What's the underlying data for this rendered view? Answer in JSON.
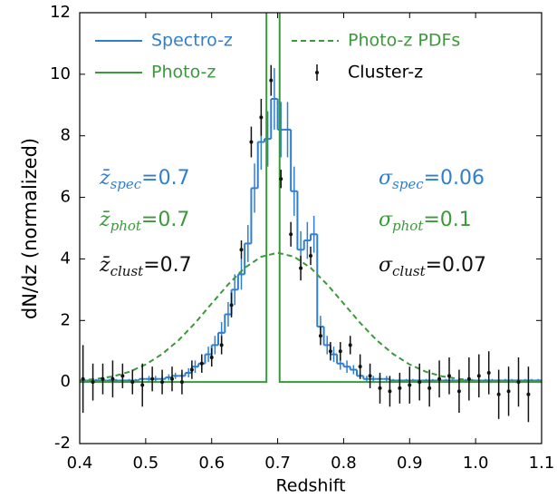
{
  "chart_data": {
    "type": "mixed",
    "xlabel": "Redshift",
    "ylabel": "dN/dz (normalized)",
    "xlim": [
      0.4,
      1.1
    ],
    "ylim": [
      -2,
      12
    ],
    "xticks": [
      0.4,
      0.5,
      0.6,
      0.7,
      0.8,
      0.9,
      {
        "value": 1,
        "label": "1.0"
      },
      1.1
    ],
    "yticks": [
      -2,
      0,
      2,
      4,
      6,
      8,
      10,
      12
    ],
    "series": [
      {
        "name": "Spectro-z",
        "type": "histogram",
        "color": "#2f7fd0",
        "bins": [
          0.4,
          0.41,
          0.42,
          0.43,
          0.44,
          0.45,
          0.46,
          0.47,
          0.48,
          0.49,
          0.5,
          0.51,
          0.52,
          0.53,
          0.54,
          0.55,
          0.56,
          0.57,
          0.58,
          0.59,
          0.6,
          0.61,
          0.62,
          0.63,
          0.64,
          0.65,
          0.66,
          0.67,
          0.68,
          0.69,
          0.7,
          0.71,
          0.72,
          0.73,
          0.74,
          0.75,
          0.76,
          0.77,
          0.78,
          0.79,
          0.8,
          0.81,
          0.82,
          0.83,
          0.84,
          0.85,
          0.86,
          0.87,
          0.88,
          0.89,
          0.9,
          0.91,
          0.92,
          0.93,
          0.94,
          0.95,
          0.96,
          0.97,
          0.98,
          0.99,
          1.0,
          1.01,
          1.02,
          1.03,
          1.04,
          1.05,
          1.06,
          1.07,
          1.08,
          1.09,
          1.1
        ],
        "values": [
          0.05,
          0.05,
          0.05,
          0.05,
          0.05,
          0.05,
          0.05,
          0.05,
          0.05,
          0.1,
          0.1,
          0.1,
          0.1,
          0.15,
          0.2,
          0.2,
          0.3,
          0.5,
          0.6,
          0.9,
          1.2,
          1.6,
          2.2,
          3.0,
          3.5,
          4.5,
          6.3,
          7.8,
          7.9,
          9.2,
          8.2,
          8.2,
          6.2,
          4.3,
          4.6,
          4.8,
          1.8,
          1.2,
          0.9,
          0.6,
          0.5,
          0.4,
          0.2,
          0.1,
          0.1,
          0.1,
          0.1,
          0.05,
          0.05,
          0.05,
          0.05,
          0.05,
          0.05,
          0.05,
          0.05,
          0.05,
          0.05,
          0.05,
          0.05,
          0.05,
          0.05,
          0.05,
          0.05,
          0.05,
          0.05,
          0.05,
          0.05,
          0.05,
          0.05,
          0.05
        ],
        "errors": [
          0.05,
          0.05,
          0.05,
          0.05,
          0.05,
          0.05,
          0.05,
          0.05,
          0.05,
          0.1,
          0.1,
          0.1,
          0.1,
          0.1,
          0.1,
          0.1,
          0.15,
          0.2,
          0.2,
          0.25,
          0.3,
          0.35,
          0.4,
          0.5,
          0.5,
          0.6,
          0.8,
          0.9,
          0.9,
          1.0,
          0.9,
          0.9,
          0.8,
          0.6,
          0.6,
          0.6,
          0.35,
          0.3,
          0.25,
          0.2,
          0.2,
          0.15,
          0.1,
          0.1,
          0.1,
          0.1,
          0.1,
          0.05,
          0.05,
          0.05,
          0.05,
          0.05,
          0.05,
          0.05,
          0.05,
          0.05,
          0.05,
          0.05,
          0.05,
          0.05,
          0.05,
          0.05,
          0.05,
          0.05,
          0.05,
          0.05,
          0.05,
          0.05,
          0.05,
          0.05
        ]
      },
      {
        "name": "Photo-z",
        "type": "line",
        "color": "#3a9a3a",
        "dash": false,
        "x": [
          0.4,
          0.683,
          0.683,
          0.703,
          0.703,
          1.1
        ],
        "values": [
          0,
          0,
          20,
          20,
          0,
          0
        ]
      },
      {
        "name": "Photo-z PDFs",
        "type": "line",
        "color": "#3a9a3a",
        "dash": true,
        "x": [
          0.4,
          0.425,
          0.45,
          0.475,
          0.5,
          0.525,
          0.55,
          0.575,
          0.6,
          0.625,
          0.65,
          0.675,
          0.7,
          0.725,
          0.75,
          0.775,
          0.8,
          0.825,
          0.85,
          0.875,
          0.9,
          0.925,
          0.95,
          0.975,
          1.0,
          1.025,
          1.05,
          1.075,
          1.1
        ],
        "values": [
          0.05,
          0.1,
          0.18,
          0.33,
          0.57,
          0.91,
          1.36,
          1.92,
          2.55,
          3.17,
          3.71,
          4.07,
          4.2,
          4.07,
          3.71,
          3.17,
          2.55,
          1.92,
          1.36,
          0.91,
          0.57,
          0.33,
          0.18,
          0.1,
          0.05,
          0.02,
          0.01,
          0.01,
          0.0
        ]
      },
      {
        "name": "Cluster-z",
        "type": "errorbar",
        "color": "#111111",
        "x": [
          0.405,
          0.42,
          0.435,
          0.45,
          0.465,
          0.48,
          0.495,
          0.51,
          0.525,
          0.54,
          0.555,
          0.57,
          0.585,
          0.6,
          0.615,
          0.63,
          0.645,
          0.66,
          0.675,
          0.69,
          0.705,
          0.72,
          0.735,
          0.75,
          0.765,
          0.78,
          0.795,
          0.81,
          0.825,
          0.84,
          0.855,
          0.87,
          0.885,
          0.9,
          0.915,
          0.93,
          0.945,
          0.96,
          0.975,
          0.99,
          1.005,
          1.02,
          1.035,
          1.05,
          1.065,
          1.08
        ],
        "values": [
          0.1,
          0.0,
          0.1,
          0.1,
          0.2,
          0.0,
          -0.1,
          0.1,
          0.0,
          0.1,
          0.0,
          0.4,
          0.6,
          0.8,
          1.2,
          2.5,
          4.3,
          7.8,
          8.6,
          9.8,
          6.6,
          4.8,
          3.7,
          4.1,
          1.5,
          1.0,
          1.0,
          1.2,
          0.5,
          0.2,
          -0.2,
          -0.3,
          -0.2,
          -0.1,
          0.0,
          -0.2,
          0.1,
          0.2,
          -0.3,
          0.1,
          0.2,
          0.3,
          -0.4,
          -0.3,
          0.0,
          -0.4
        ],
        "errors": [
          1.1,
          0.6,
          0.5,
          0.6,
          0.4,
          0.4,
          0.7,
          0.4,
          0.4,
          0.4,
          0.4,
          0.3,
          0.3,
          0.3,
          0.3,
          0.4,
          0.3,
          0.5,
          0.6,
          0.5,
          0.3,
          0.4,
          0.4,
          0.3,
          0.3,
          0.3,
          0.3,
          0.3,
          0.4,
          0.4,
          0.5,
          0.5,
          0.5,
          0.6,
          0.6,
          0.6,
          0.6,
          0.6,
          0.7,
          0.7,
          0.7,
          0.7,
          0.8,
          0.8,
          0.8,
          0.9
        ]
      }
    ],
    "annotations": [
      {
        "symbol": "z̄",
        "sub": "spec",
        "text": "=0.7",
        "color": "#2f7fd0"
      },
      {
        "symbol": "z̄",
        "sub": "phot",
        "text": "=0.7",
        "color": "#3a9a3a"
      },
      {
        "symbol": "z̄",
        "sub": "clust",
        "text": "=0.7",
        "color": "#111111"
      },
      {
        "symbol": "σ",
        "sub": "spec",
        "text": "=0.06",
        "color": "#2f7fd0"
      },
      {
        "symbol": "σ",
        "sub": "phot",
        "text": "=0.1",
        "color": "#3a9a3a"
      },
      {
        "symbol": "σ",
        "sub": "clust",
        "text": "=0.07",
        "color": "#111111"
      }
    ]
  }
}
